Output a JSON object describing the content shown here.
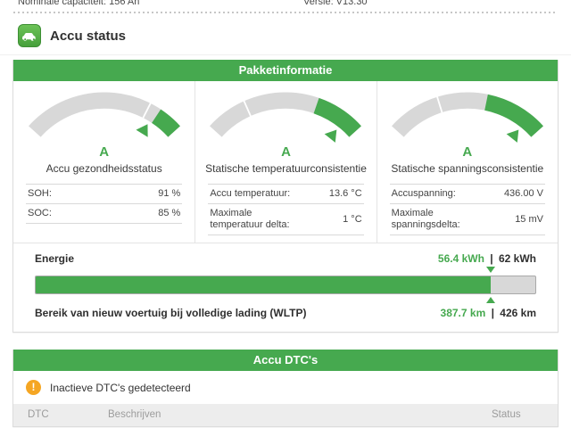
{
  "top_bar": {
    "capacity": "Nominale capaciteit: 156 Ah",
    "version": "Versie: V13.30"
  },
  "header": {
    "title": "Accu status"
  },
  "package_info": {
    "title": "Pakketinformatie",
    "gauges": [
      {
        "grade": "A",
        "label": "Accu gezondheidsstatus",
        "rows": [
          {
            "label": "SOH:",
            "value": "91 %"
          },
          {
            "label": "SOC:",
            "value": "85 %"
          }
        ],
        "arc": {
          "divider": 0.78,
          "green_start": 0.85,
          "pointer": 0.83
        }
      },
      {
        "grade": "A",
        "label": "Statische temperatuurconsistentie",
        "rows": [
          {
            "label": "Accu temperatuur:",
            "value": "13.6 °C"
          },
          {
            "label": "Maximale temperatuur delta:",
            "value": "1 °C"
          }
        ],
        "arc": {
          "divider": 0.25,
          "green_start": 0.7,
          "pointer": 0.9
        }
      },
      {
        "grade": "A",
        "label": "Statische spanningsconsistentie",
        "rows": [
          {
            "label": "Accuspanning:",
            "value": "436.00 V"
          },
          {
            "label": "Maximale spanningsdelta:",
            "value": "15 mV"
          }
        ],
        "arc": {
          "divider": 0.32,
          "green_start": 0.62,
          "pointer": 0.9
        }
      }
    ],
    "energy": {
      "label": "Energie",
      "current": "56.4 kWh",
      "separator": "|",
      "total": "62 kWh",
      "percent": 91,
      "range_label": "Bereik van nieuw voertuig bij volledige lading (WLTP)",
      "range_current": "387.7 km",
      "range_total": "426 km"
    }
  },
  "dtc": {
    "title": "Accu DTC's",
    "warning_glyph": "!",
    "notice": "Inactieve DTC's gedetecteerd",
    "columns": [
      "DTC",
      "Beschrijven",
      "Status"
    ]
  },
  "colors": {
    "green": "#46a94f",
    "arc-gray": "#d8d8d8",
    "warning": "#f5a623"
  }
}
